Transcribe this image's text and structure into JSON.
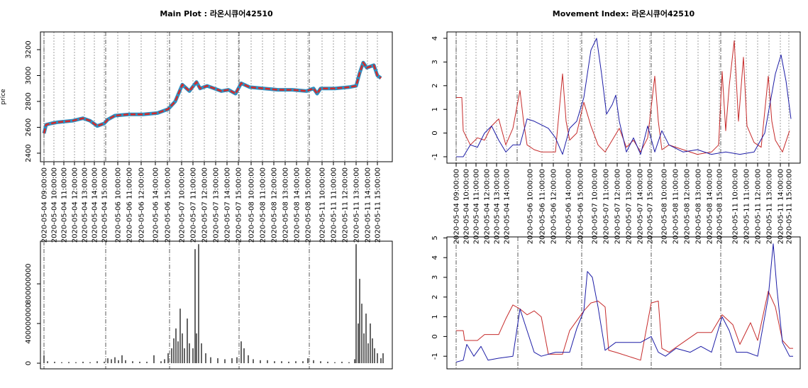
{
  "chart_data": [
    {
      "type": "line",
      "title": "Main Plot : 라온시큐어42510",
      "ylabel": "price",
      "xlim": [
        -5,
        491
      ],
      "ylim": [
        2334,
        3337
      ],
      "yticks": [
        2400,
        2600,
        2800,
        3000,
        3200
      ],
      "vlines": [
        0,
        87,
        177,
        275,
        374
      ],
      "xticks": [
        {
          "value": 0,
          "label": "2020-05-04 09:00:00"
        },
        {
          "value": 14,
          "label": "2020-05-04 10:00:00"
        },
        {
          "value": 28,
          "label": "2020-05-04 11:00:00"
        },
        {
          "value": 43,
          "label": "2020-05-04 12:00:00"
        },
        {
          "value": 57,
          "label": "2020-05-04 13:00:00"
        },
        {
          "value": 71,
          "label": "2020-05-04 14:00:00"
        },
        {
          "value": 85,
          "label": "2020-05-04 15:00:00"
        },
        {
          "value": 104,
          "label": "2020-05-06 10:00:00"
        },
        {
          "value": 120,
          "label": "2020-05-06 11:00:00"
        },
        {
          "value": 137,
          "label": "2020-05-06 12:00:00"
        },
        {
          "value": 157,
          "label": "2020-05-06 14:00:00"
        },
        {
          "value": 174,
          "label": "2020-05-06 15:00:00"
        },
        {
          "value": 194,
          "label": "2020-05-07 10:00:00"
        },
        {
          "value": 210,
          "label": "2020-05-07 11:00:00"
        },
        {
          "value": 226,
          "label": "2020-05-07 12:00:00"
        },
        {
          "value": 242,
          "label": "2020-05-07 13:00:00"
        },
        {
          "value": 258,
          "label": "2020-05-07 14:00:00"
        },
        {
          "value": 274,
          "label": "2020-05-07 15:00:00"
        },
        {
          "value": 292,
          "label": "2020-05-08 10:00:00"
        },
        {
          "value": 308,
          "label": "2020-05-08 11:00:00"
        },
        {
          "value": 324,
          "label": "2020-05-08 12:00:00"
        },
        {
          "value": 340,
          "label": "2020-05-08 13:00:00"
        },
        {
          "value": 356,
          "label": "2020-05-08 14:00:00"
        },
        {
          "value": 372,
          "label": "2020-05-08 15:00:00"
        },
        {
          "value": 392,
          "label": "2020-05-11 10:00:00"
        },
        {
          "value": 408,
          "label": "2020-05-11 11:00:00"
        },
        {
          "value": 424,
          "label": "2020-05-11 12:00:00"
        },
        {
          "value": 440,
          "label": "2020-05-11 13:00:00"
        },
        {
          "value": 456,
          "label": "2020-05-11 14:00:00"
        },
        {
          "value": 470,
          "label": "2020-05-11 15:00:00"
        }
      ],
      "series": [
        {
          "color": "#d42a2a",
          "edge_color": "#2f8fc0",
          "x": [
            0,
            3,
            10,
            20,
            40,
            55,
            65,
            75,
            85,
            90,
            100,
            120,
            140,
            160,
            175,
            185,
            195,
            205,
            215,
            220,
            230,
            240,
            250,
            260,
            270,
            278,
            290,
            310,
            330,
            350,
            370,
            380,
            385,
            390,
            410,
            430,
            440,
            445,
            450,
            455,
            465,
            470,
            475
          ],
          "values": [
            2553,
            2620,
            2630,
            2640,
            2650,
            2670,
            2650,
            2610,
            2630,
            2660,
            2690,
            2700,
            2700,
            2710,
            2740,
            2800,
            2930,
            2880,
            2950,
            2900,
            2920,
            2900,
            2880,
            2890,
            2860,
            2940,
            2910,
            2900,
            2890,
            2890,
            2880,
            2900,
            2860,
            2900,
            2900,
            2910,
            2920,
            3020,
            3100,
            3060,
            3080,
            3000,
            2980
          ]
        }
      ]
    },
    {
      "type": "bar",
      "xlim": [
        -5,
        491
      ],
      "ylim": [
        -57000000,
        1230000000
      ],
      "yticks": [
        0,
        400000000,
        800000000
      ],
      "vlines": [
        0,
        87,
        177,
        275,
        374
      ],
      "series": [
        {
          "color": "#000000",
          "x": [
            0,
            5,
            15,
            25,
            35,
            45,
            55,
            65,
            75,
            85,
            90,
            95,
            100,
            105,
            110,
            115,
            125,
            135,
            145,
            155,
            165,
            170,
            175,
            180,
            183,
            186,
            189,
            192,
            195,
            198,
            202,
            205,
            210,
            213,
            215,
            218,
            222,
            228,
            235,
            245,
            255,
            265,
            272,
            278,
            282,
            288,
            295,
            305,
            315,
            325,
            335,
            345,
            355,
            365,
            372,
            380,
            390,
            400,
            410,
            420,
            430,
            438,
            440,
            443,
            445,
            448,
            451,
            454,
            457,
            460,
            463,
            466,
            470,
            475,
            478
          ],
          "values": [
            80000000.0,
            20000000.0,
            15000000.0,
            10000000.0,
            12000000.0,
            10000000.0,
            15000000.0,
            10000000.0,
            20000000.0,
            15000000.0,
            50000000.0,
            40000000.0,
            60000000.0,
            30000000.0,
            80000000.0,
            30000000.0,
            20000000.0,
            15000000.0,
            15000000.0,
            80000000.0,
            20000000.0,
            40000000.0,
            100000000.0,
            150000000.0,
            250000000.0,
            350000000.0,
            220000000.0,
            550000000.0,
            300000000.0,
            150000000.0,
            450000000.0,
            200000000.0,
            150000000.0,
            1150000000.0,
            300000000.0,
            1200000000.0,
            200000000.0,
            100000000.0,
            60000000.0,
            50000000.0,
            40000000.0,
            50000000.0,
            60000000.0,
            220000000.0,
            150000000.0,
            80000000.0,
            40000000.0,
            30000000.0,
            30000000.0,
            20000000.0,
            20000000.0,
            15000000.0,
            20000000.0,
            20000000.0,
            50000000.0,
            30000000.0,
            20000000.0,
            15000000.0,
            10000000.0,
            15000000.0,
            10000000.0,
            40000000.0,
            1200000000.0,
            400000000.0,
            850000000.0,
            600000000.0,
            300000000.0,
            500000000.0,
            200000000.0,
            400000000.0,
            250000000.0,
            150000000.0,
            100000000.0,
            50000000.0,
            100000000.0
          ]
        }
      ]
    },
    {
      "type": "line",
      "title": "Movement Index: 라온시큐어42510",
      "xlim": [
        -13,
        485
      ],
      "ylim": [
        -1.27,
        4.27
      ],
      "yticks": [
        -1,
        0,
        1,
        2,
        3,
        4
      ],
      "vlines": [
        0,
        86,
        177,
        275,
        373
      ],
      "xticks": [
        {
          "value": 0,
          "label": "2020-05-04 09:00:00"
        },
        {
          "value": 14,
          "label": "2020-05-04 10:00:00"
        },
        {
          "value": 28,
          "label": "2020-05-04 11:00:00"
        },
        {
          "value": 43,
          "label": "2020-05-04 12:00:00"
        },
        {
          "value": 57,
          "label": "2020-05-04 13:00:00"
        },
        {
          "value": 71,
          "label": "2020-05-04 14:00:00"
        },
        {
          "value": 104,
          "label": "2020-05-06 10:00:00"
        },
        {
          "value": 121,
          "label": "2020-05-06 11:00:00"
        },
        {
          "value": 137,
          "label": "2020-05-06 12:00:00"
        },
        {
          "value": 158,
          "label": "2020-05-06 14:00:00"
        },
        {
          "value": 175,
          "label": "2020-05-06 15:00:00"
        },
        {
          "value": 195,
          "label": "2020-05-07 10:00:00"
        },
        {
          "value": 211,
          "label": "2020-05-07 11:00:00"
        },
        {
          "value": 227,
          "label": "2020-05-07 12:00:00"
        },
        {
          "value": 243,
          "label": "2020-05-07 13:00:00"
        },
        {
          "value": 259,
          "label": "2020-05-07 14:00:00"
        },
        {
          "value": 273,
          "label": "2020-05-07 15:00:00"
        },
        {
          "value": 293,
          "label": "2020-05-08 10:00:00"
        },
        {
          "value": 309,
          "label": "2020-05-08 11:00:00"
        },
        {
          "value": 325,
          "label": "2020-05-08 12:00:00"
        },
        {
          "value": 341,
          "label": "2020-05-08 13:00:00"
        },
        {
          "value": 357,
          "label": "2020-05-08 14:00:00"
        },
        {
          "value": 371,
          "label": "2020-05-08 15:00:00"
        },
        {
          "value": 393,
          "label": "2020-05-11 10:00:00"
        },
        {
          "value": 409,
          "label": "2020-05-11 11:00:00"
        },
        {
          "value": 425,
          "label": "2020-05-11 12:00:00"
        },
        {
          "value": 441,
          "label": "2020-05-11 13:00:00"
        },
        {
          "value": 457,
          "label": "2020-05-11 14:00:00"
        },
        {
          "value": 469,
          "label": "2020-05-11 15:00:00"
        }
      ],
      "series": [
        {
          "color": "#c62b2b",
          "x": [
            0,
            8,
            10,
            20,
            30,
            40,
            50,
            60,
            70,
            80,
            90,
            95,
            100,
            110,
            120,
            140,
            150,
            155,
            160,
            170,
            180,
            190,
            200,
            210,
            220,
            230,
            240,
            250,
            260,
            270,
            280,
            285,
            290,
            300,
            320,
            340,
            360,
            370,
            375,
            380,
            385,
            392,
            398,
            405,
            410,
            420,
            430,
            440,
            445,
            450,
            460,
            470
          ],
          "values": [
            1.5,
            1.5,
            0.1,
            -0.5,
            -0.2,
            -0.3,
            0.3,
            0.6,
            -0.5,
            0.2,
            1.8,
            0.5,
            -0.5,
            -0.7,
            -0.8,
            -0.8,
            2.5,
            0.5,
            -0.3,
            0,
            1.3,
            0.3,
            -0.5,
            -0.8,
            -0.3,
            0.2,
            -0.6,
            -0.3,
            -0.8,
            -0.2,
            2.4,
            0.5,
            -0.7,
            -0.5,
            -0.7,
            -0.9,
            -0.8,
            -0.5,
            2.6,
            0.1,
            2.0,
            3.9,
            0.5,
            3.2,
            0.3,
            -0.4,
            -0.6,
            2.4,
            0.5,
            -0.3,
            -0.8,
            0.1
          ]
        },
        {
          "color": "#1c1ca6",
          "x": [
            0,
            10,
            20,
            30,
            40,
            50,
            60,
            70,
            80,
            90,
            100,
            110,
            130,
            140,
            150,
            160,
            170,
            180,
            190,
            198,
            205,
            212,
            220,
            225,
            230,
            240,
            250,
            260,
            270,
            280,
            290,
            300,
            320,
            340,
            360,
            380,
            400,
            420,
            435,
            450,
            458,
            465,
            472
          ],
          "values": [
            -1,
            -1,
            -0.5,
            -0.6,
            0,
            0.3,
            -0.3,
            -0.8,
            -0.5,
            -0.5,
            0.6,
            0.5,
            0.2,
            -0.2,
            -0.9,
            0.2,
            0.5,
            1.5,
            3.5,
            4.0,
            2.5,
            0.8,
            1.2,
            1.6,
            0.5,
            -0.8,
            -0.2,
            -0.9,
            0.3,
            -0.8,
            0.1,
            -0.5,
            -0.8,
            -0.7,
            -0.9,
            -0.8,
            -0.9,
            -0.8,
            0,
            2.5,
            3.3,
            2.2,
            0.6
          ]
        }
      ]
    },
    {
      "type": "line",
      "xlim": [
        -13,
        485
      ],
      "ylim": [
        -1.64,
        5.05
      ],
      "yticks": [
        -1,
        0,
        1,
        2,
        3,
        4,
        5
      ],
      "vlines": [
        0,
        87,
        177,
        275,
        373
      ],
      "series": [
        {
          "color": "#c62b2b",
          "x": [
            0,
            10,
            12,
            30,
            40,
            60,
            70,
            80,
            90,
            100,
            110,
            120,
            130,
            150,
            160,
            170,
            180,
            190,
            200,
            210,
            215,
            225,
            260,
            275,
            285,
            290,
            300,
            320,
            340,
            360,
            375,
            390,
            400,
            415,
            425,
            440,
            450,
            460,
            470,
            475
          ],
          "values": [
            0.3,
            0.3,
            -0.2,
            -0.2,
            0.1,
            0.1,
            0.9,
            1.6,
            1.4,
            1.1,
            1.3,
            1,
            -0.9,
            -0.9,
            0.3,
            0.8,
            1.3,
            1.7,
            1.8,
            1.5,
            -0.7,
            -0.8,
            -1.2,
            1.7,
            1.8,
            -0.6,
            -0.8,
            -0.3,
            0.2,
            0.2,
            1.1,
            0.6,
            -0.4,
            0.7,
            -0.2,
            2.3,
            1.5,
            -0.2,
            -0.6,
            -0.6
          ]
        },
        {
          "color": "#1c1ca6",
          "x": [
            0,
            10,
            15,
            25,
            35,
            45,
            60,
            80,
            90,
            100,
            110,
            120,
            140,
            160,
            170,
            180,
            185,
            192,
            200,
            210,
            225,
            240,
            260,
            275,
            285,
            295,
            310,
            330,
            345,
            360,
            375,
            385,
            395,
            410,
            425,
            440,
            447,
            452,
            460,
            470,
            475
          ],
          "values": [
            -1.3,
            -1.2,
            -0.4,
            -1,
            -0.5,
            -1.2,
            -1.1,
            -1,
            1.4,
            0.3,
            -0.8,
            -1,
            -0.8,
            -0.8,
            0.4,
            1.3,
            3.3,
            3,
            1.5,
            -0.7,
            -0.3,
            -0.3,
            -0.3,
            0,
            -0.8,
            -1,
            -0.6,
            -0.8,
            -0.5,
            -0.8,
            1,
            0.3,
            -0.8,
            -0.8,
            -1,
            2,
            4.7,
            2.5,
            -0.3,
            -1,
            -1
          ]
        }
      ]
    }
  ]
}
